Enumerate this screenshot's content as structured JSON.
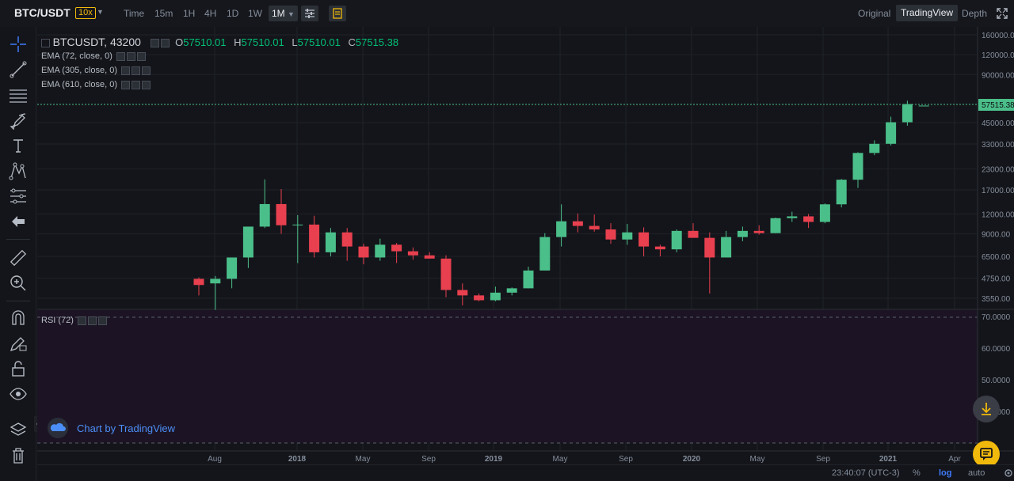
{
  "header": {
    "pair": "BTC/USDT",
    "leverage": "10x",
    "timeframes": [
      "Time",
      "15m",
      "1H",
      "4H",
      "1D",
      "1W",
      "1M"
    ],
    "active_timeframe": "1M",
    "views": [
      "Original",
      "TradingView",
      "Depth"
    ],
    "active_view": "TradingView"
  },
  "legend": {
    "symbol": "BTCUSDT, 43200",
    "o_label": "O",
    "o_value": "57510.01",
    "h_label": "H",
    "h_value": "57510.01",
    "l_label": "L",
    "l_value": "57510.01",
    "c_label": "C",
    "c_value": "57515.38",
    "indicators": [
      "EMA (72, close, 0)",
      "EMA (305, close, 0)",
      "EMA (610, close, 0)"
    ],
    "rsi": "RSI (72)"
  },
  "branding": {
    "tv_text": "Chart by TradingView"
  },
  "bottom": {
    "time": "23:40:07 (UTC-3)",
    "percent": "%",
    "log": "log",
    "auto": "auto"
  },
  "colors": {
    "up": "#4bbf8a",
    "down": "#e8404f",
    "price_line": "#4bbf8a",
    "rsi_bg": "#1c1424"
  },
  "chart_data": {
    "type": "candlestick",
    "price_axis_labels": [
      "160000.00",
      "120000.00",
      "90000.00",
      "45000.00",
      "33000.00",
      "23000.00",
      "17000.00",
      "12000.00",
      "9000.00",
      "6500.00",
      "4750.00",
      "3550.00"
    ],
    "last_price_label": "57515.38",
    "time_axis_labels": [
      "Aug",
      "2018",
      "May",
      "Sep",
      "2019",
      "May",
      "Sep",
      "2020",
      "May",
      "Sep",
      "2021",
      "Apr"
    ],
    "rsi_axis_labels": [
      "70.0000",
      "60.0000",
      "50.0000",
      "40.0000"
    ],
    "scale": "log",
    "candles": [
      {
        "o": 4700,
        "h": 4800,
        "l": 3700,
        "c": 4300
      },
      {
        "o": 4400,
        "h": 4900,
        "l": 3000,
        "c": 4700
      },
      {
        "o": 4700,
        "h": 6400,
        "l": 4100,
        "c": 6400
      },
      {
        "o": 6400,
        "h": 10000,
        "l": 5500,
        "c": 10000
      },
      {
        "o": 10000,
        "h": 19800,
        "l": 9800,
        "c": 13850
      },
      {
        "o": 13850,
        "h": 17200,
        "l": 9000,
        "c": 10200
      },
      {
        "o": 10200,
        "h": 11800,
        "l": 5900,
        "c": 10300
      },
      {
        "o": 10300,
        "h": 11700,
        "l": 6400,
        "c": 6900
      },
      {
        "o": 6900,
        "h": 9800,
        "l": 6500,
        "c": 9200
      },
      {
        "o": 9200,
        "h": 9800,
        "l": 6100,
        "c": 7500
      },
      {
        "o": 7500,
        "h": 7800,
        "l": 5800,
        "c": 6400
      },
      {
        "o": 6400,
        "h": 8400,
        "l": 6100,
        "c": 7700
      },
      {
        "o": 7700,
        "h": 7900,
        "l": 5900,
        "c": 7000
      },
      {
        "o": 7000,
        "h": 7400,
        "l": 6200,
        "c": 6600
      },
      {
        "o": 6600,
        "h": 6900,
        "l": 6300,
        "c": 6300
      },
      {
        "o": 6300,
        "h": 6600,
        "l": 3600,
        "c": 4000
      },
      {
        "o": 4000,
        "h": 4400,
        "l": 3200,
        "c": 3700
      },
      {
        "o": 3700,
        "h": 3800,
        "l": 3400,
        "c": 3450
      },
      {
        "o": 3450,
        "h": 4200,
        "l": 3400,
        "c": 3850
      },
      {
        "o": 3850,
        "h": 4150,
        "l": 3700,
        "c": 4100
      },
      {
        "o": 4100,
        "h": 5600,
        "l": 4100,
        "c": 5300
      },
      {
        "o": 5300,
        "h": 9100,
        "l": 5300,
        "c": 8600
      },
      {
        "o": 8600,
        "h": 13800,
        "l": 7500,
        "c": 10800
      },
      {
        "o": 10800,
        "h": 12100,
        "l": 9200,
        "c": 10100
      },
      {
        "o": 10100,
        "h": 11900,
        "l": 9300,
        "c": 9600
      },
      {
        "o": 9600,
        "h": 10500,
        "l": 7800,
        "c": 8300
      },
      {
        "o": 8300,
        "h": 10400,
        "l": 7700,
        "c": 9200
      },
      {
        "o": 9200,
        "h": 9900,
        "l": 6500,
        "c": 7500
      },
      {
        "o": 7500,
        "h": 7700,
        "l": 6500,
        "c": 7200
      },
      {
        "o": 7200,
        "h": 9600,
        "l": 6900,
        "c": 9400
      },
      {
        "o": 9400,
        "h": 10500,
        "l": 8500,
        "c": 8500
      },
      {
        "o": 8500,
        "h": 9200,
        "l": 3800,
        "c": 6400
      },
      {
        "o": 6400,
        "h": 9400,
        "l": 6400,
        "c": 8600
      },
      {
        "o": 8600,
        "h": 10000,
        "l": 8100,
        "c": 9400
      },
      {
        "o": 9400,
        "h": 10200,
        "l": 8900,
        "c": 9100
      },
      {
        "o": 9100,
        "h": 11400,
        "l": 9100,
        "c": 11300
      },
      {
        "o": 11300,
        "h": 12400,
        "l": 10700,
        "c": 11600
      },
      {
        "o": 11600,
        "h": 12000,
        "l": 9800,
        "c": 10700
      },
      {
        "o": 10700,
        "h": 14000,
        "l": 10500,
        "c": 13800
      },
      {
        "o": 13800,
        "h": 19900,
        "l": 13200,
        "c": 19700
      },
      {
        "o": 19700,
        "h": 29300,
        "l": 17500,
        "c": 29000
      },
      {
        "o": 29000,
        "h": 34800,
        "l": 28100,
        "c": 33100
      },
      {
        "o": 33100,
        "h": 49000,
        "l": 32300,
        "c": 45200
      },
      {
        "o": 45200,
        "h": 61800,
        "l": 43000,
        "c": 58800
      },
      {
        "o": 57510,
        "h": 57510,
        "l": 57510,
        "c": 57515
      }
    ]
  }
}
